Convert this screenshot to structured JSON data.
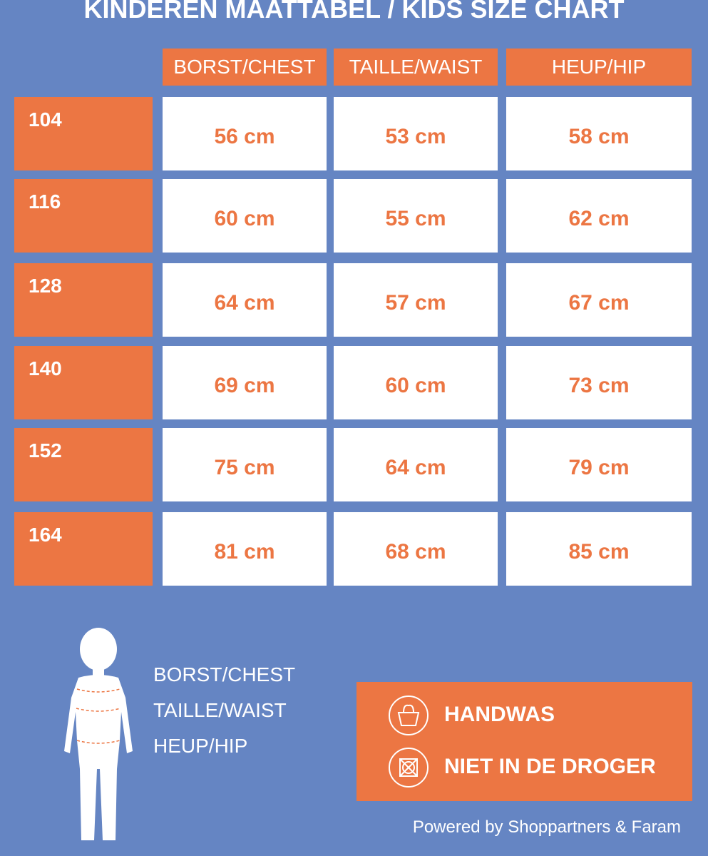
{
  "title": "KINDEREN MAATTABEL / KIDS SIZE CHART",
  "table": {
    "headers": [
      "BORST/CHEST",
      "TAILLE/WAIST",
      "HEUP/HIP"
    ],
    "rows": [
      {
        "size": "104",
        "cells": [
          "56 cm",
          "53 cm",
          "58 cm"
        ]
      },
      {
        "size": "116",
        "cells": [
          "60 cm",
          "55 cm",
          "62 cm"
        ]
      },
      {
        "size": "128",
        "cells": [
          "64 cm",
          "57 cm",
          "67 cm"
        ]
      },
      {
        "size": "140",
        "cells": [
          "69 cm",
          "60 cm",
          "73 cm"
        ]
      },
      {
        "size": "152",
        "cells": [
          "75 cm",
          "64 cm",
          "79 cm"
        ]
      },
      {
        "size": "164",
        "cells": [
          "81 cm",
          "68 cm",
          "85 cm"
        ]
      }
    ]
  },
  "legend": [
    "BORST/CHEST",
    "TAILLE/WAIST",
    "HEUP/HIP"
  ],
  "care": [
    "HANDWAS",
    "NIET IN DE DROGER"
  ],
  "footer": "Powered by Shoppartners & Faram"
}
